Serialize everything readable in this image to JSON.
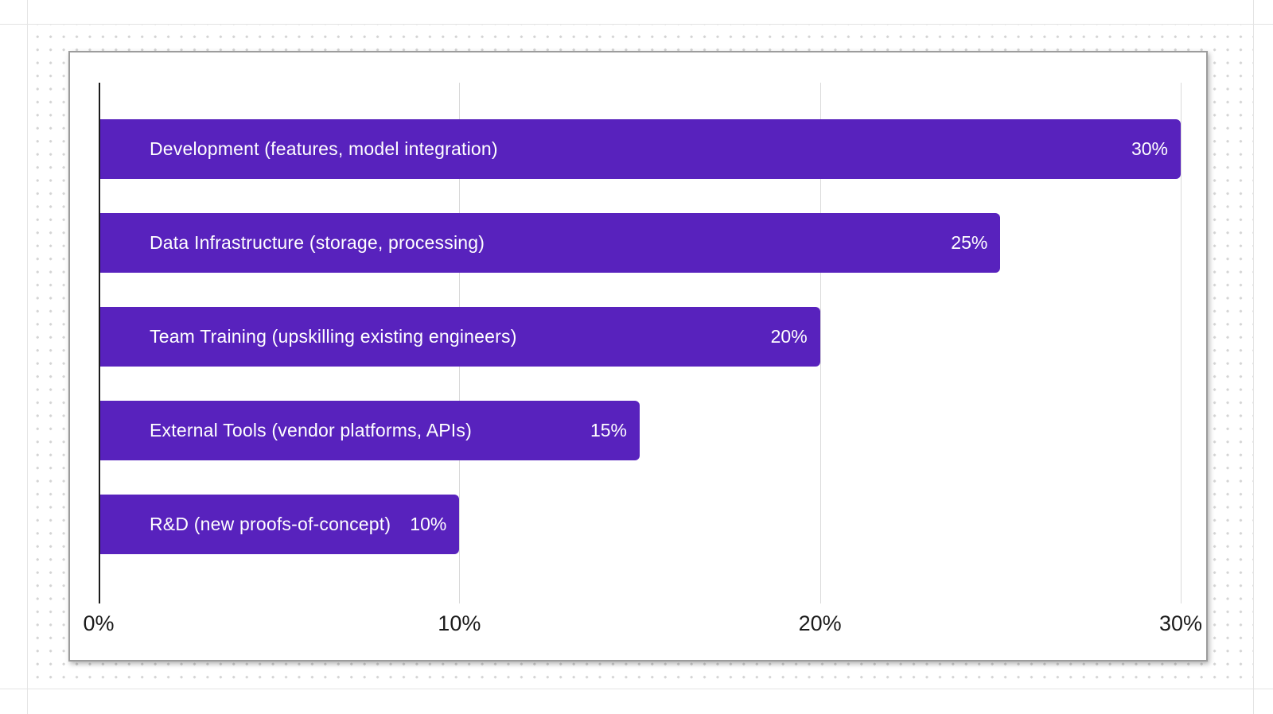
{
  "chart_data": {
    "type": "bar",
    "orientation": "horizontal",
    "title": "",
    "categories": [
      "Development (features, model integration)",
      "Data Infrastructure (storage, processing)",
      "Team Training (upskilling existing engineers)",
      "External Tools (vendor platforms, APIs)",
      "R&D (new proofs-of-concept)"
    ],
    "values": [
      30,
      25,
      20,
      15,
      10
    ],
    "value_labels": [
      "30%",
      "25%",
      "20%",
      "15%",
      "10%"
    ],
    "x_tick_values": [
      0,
      10,
      20,
      30
    ],
    "x_tick_labels": [
      "0%",
      "10%",
      "20%",
      "30%"
    ],
    "xlim": [
      0,
      30
    ],
    "grid": true,
    "legend": false,
    "bar_color": "#5822bd",
    "bar_text_color": "#ffffff",
    "axis_line_color": "#1b1b1b",
    "gridline_color": "#d9d9d9",
    "tick_label_color": "#1a1a1a"
  },
  "canvas": {
    "background_color": "#ffffff",
    "dot_color": "#d4d4d4",
    "guide_line_color": "#e4e4e4",
    "card_background_color": "#ffffff",
    "card_border_color": "#9c9c9c"
  }
}
